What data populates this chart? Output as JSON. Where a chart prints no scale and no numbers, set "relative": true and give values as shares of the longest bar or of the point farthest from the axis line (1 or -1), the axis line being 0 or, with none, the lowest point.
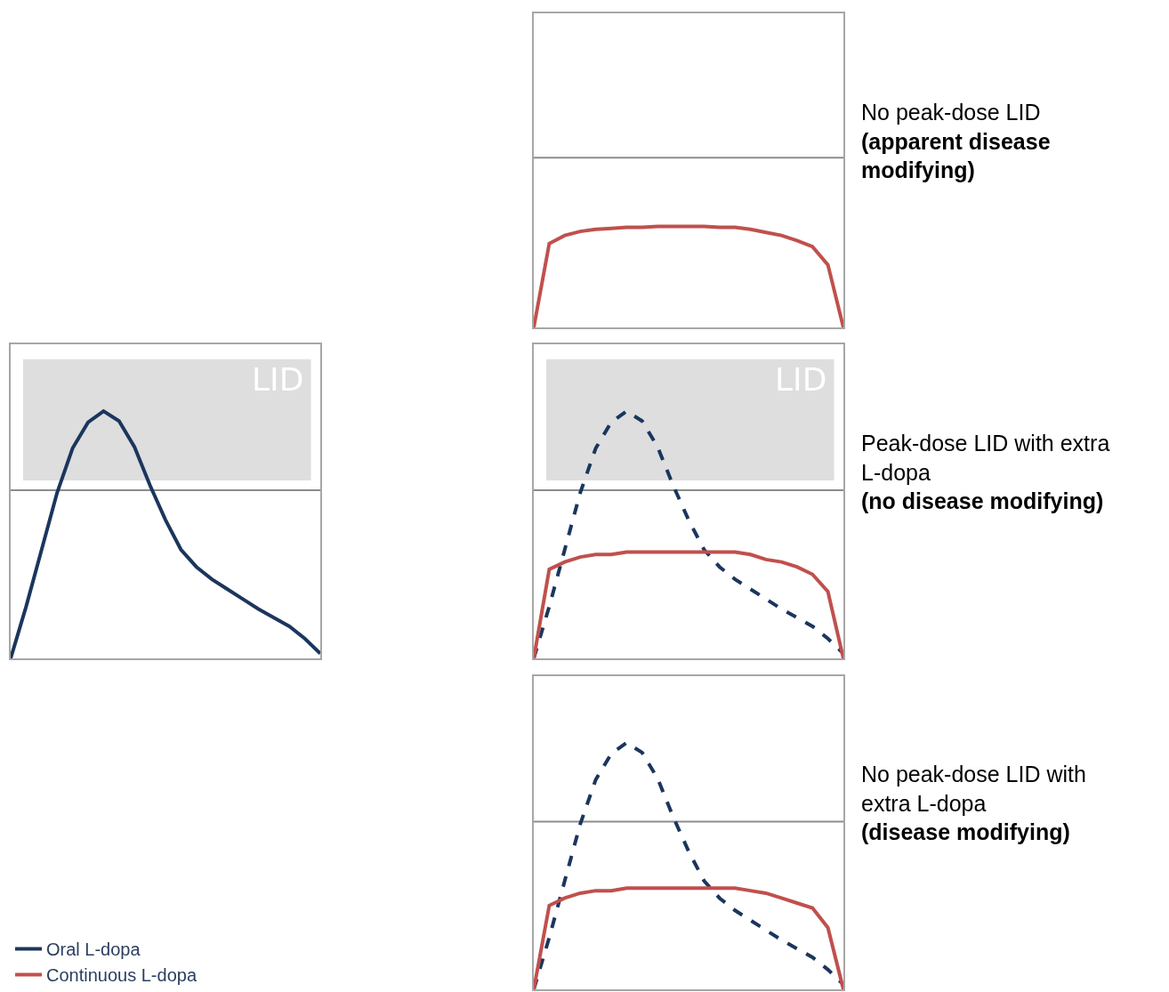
{
  "chart_data": [
    {
      "type": "line",
      "relative": true,
      "categories": [
        null,
        null,
        null,
        null,
        null,
        null,
        null,
        null,
        null,
        null,
        null,
        null,
        null,
        null,
        null,
        null,
        null,
        null,
        null,
        null,
        null
      ],
      "legend": "bottom left",
      "series": [
        {
          "name": "Oral L-dopa",
          "color": "#1b365d",
          "line_style": "solid",
          "values": [
            0,
            0.21,
            0.44,
            0.67,
            0.85,
            0.955,
            1,
            0.96,
            0.855,
            0.7,
            0.56,
            0.44,
            0.37,
            0.32,
            0.28,
            0.24,
            0.2,
            0.165,
            0.13,
            0.08,
            0.02
          ]
        }
      ],
      "ref_lines": [
        {
          "axis": "y",
          "value": 0.68,
          "color": "#8c8c8c"
        }
      ],
      "bands": [
        {
          "axis": "y",
          "from": 0.72,
          "to": 1.21,
          "label": "LID",
          "color": "#dedede"
        }
      ]
    },
    {
      "type": "line",
      "relative": true,
      "categories": [
        null,
        null,
        null,
        null,
        null,
        null,
        null,
        null,
        null,
        null,
        null,
        null,
        null,
        null,
        null,
        null,
        null,
        null,
        null,
        null,
        null
      ],
      "series": [
        {
          "name": "Continuous L-dopa",
          "color": "#c0504d",
          "line_style": "solid",
          "values": [
            0,
            0.83,
            0.91,
            0.95,
            0.97,
            0.98,
            0.99,
            0.99,
            1,
            1,
            1,
            1,
            0.99,
            0.99,
            0.97,
            0.94,
            0.91,
            0.86,
            0.8,
            0.62,
            0
          ]
        }
      ],
      "ref_lines": [
        {
          "axis": "y",
          "value": 1.68,
          "color": "#8c8c8c"
        }
      ],
      "annotations": [
        "No peak-dose LID",
        "(apparent disease modifying)"
      ]
    },
    {
      "type": "line",
      "relative": true,
      "categories": [
        null,
        null,
        null,
        null,
        null,
        null,
        null,
        null,
        null,
        null,
        null,
        null,
        null,
        null,
        null,
        null,
        null,
        null,
        null,
        null,
        null
      ],
      "series": [
        {
          "color": "#1b365d",
          "line_style": "dashed",
          "values": [
            0,
            0.21,
            0.44,
            0.67,
            0.85,
            0.955,
            1,
            0.96,
            0.855,
            0.7,
            0.56,
            0.44,
            0.37,
            0.32,
            0.28,
            0.24,
            0.2,
            0.165,
            0.13,
            0.08,
            0.02
          ]
        },
        {
          "color": "#c0504d",
          "line_style": "solid",
          "values": [
            0,
            0.36,
            0.39,
            0.41,
            0.42,
            0.42,
            0.43,
            0.43,
            0.43,
            0.43,
            0.43,
            0.43,
            0.43,
            0.43,
            0.42,
            0.4,
            0.39,
            0.37,
            0.34,
            0.27,
            0
          ]
        }
      ],
      "ref_lines": [
        {
          "axis": "y",
          "value": 0.68,
          "color": "#8c8c8c"
        }
      ],
      "bands": [
        {
          "axis": "y",
          "from": 0.72,
          "to": 1.21,
          "label": "LID",
          "color": "#dedede"
        }
      ],
      "annotations": [
        "Peak-dose LID with extra L-dopa",
        "(no disease modifying)"
      ]
    },
    {
      "type": "line",
      "relative": true,
      "categories": [
        null,
        null,
        null,
        null,
        null,
        null,
        null,
        null,
        null,
        null,
        null,
        null,
        null,
        null,
        null,
        null,
        null,
        null,
        null,
        null,
        null
      ],
      "series": [
        {
          "color": "#1b365d",
          "line_style": "dashed",
          "values": [
            0,
            0.21,
            0.44,
            0.67,
            0.85,
            0.955,
            1,
            0.96,
            0.855,
            0.7,
            0.56,
            0.44,
            0.37,
            0.32,
            0.28,
            0.24,
            0.2,
            0.165,
            0.13,
            0.08,
            0.02
          ]
        },
        {
          "color": "#c0504d",
          "line_style": "solid",
          "values": [
            0,
            0.34,
            0.37,
            0.39,
            0.4,
            0.4,
            0.41,
            0.41,
            0.41,
            0.41,
            0.41,
            0.41,
            0.41,
            0.41,
            0.4,
            0.39,
            0.37,
            0.35,
            0.33,
            0.25,
            0
          ]
        }
      ],
      "ref_lines": [
        {
          "axis": "y",
          "value": 0.68,
          "color": "#8c8c8c"
        }
      ],
      "annotations": [
        "No peak-dose LID with extra L-dopa",
        "(disease modifying)"
      ]
    }
  ]
}
